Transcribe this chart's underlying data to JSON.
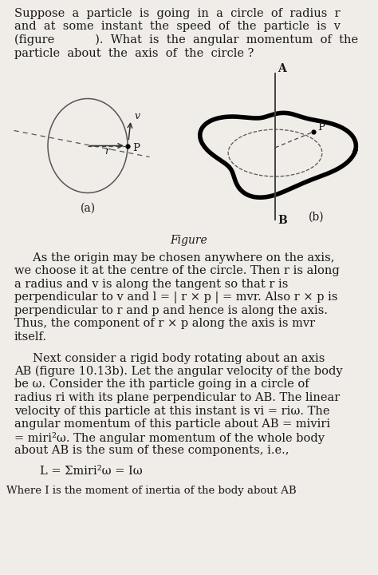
{
  "bg_color": "#f0ede8",
  "text_color": "#1a1a1a",
  "fs": 10.5,
  "lh": 16.5,
  "para1": [
    "Suppose  a  particle  is  going  in  a  circle  of  radius  r",
    "and  at  some  instant  the  speed  of  the  particle  is  v",
    "(figure           ).  What  is  the  angular  momentum  of  the",
    "particle  about  the  axis  of  the  circle ?"
  ],
  "p2": [
    "     As the origin may be chosen anywhere on the axis,",
    "we choose it at the centre of the circle. Then r is along",
    "a radius and v is along the tangent so that r is",
    "perpendicular to v and l = | r × p | = mvr. Also r × p is",
    "perpendicular to r and p and hence is along the axis.",
    "Thus, the component of r × p along the axis is mvr",
    "itself."
  ],
  "p3": [
    "     Next consider a rigid body rotating about an axis",
    "AB (figure 10.13b). Let the angular velocity of the body",
    "be ω. Consider the ith particle going in a circle of",
    "radius ri with its plane perpendicular to AB. The linear",
    "velocity of this particle at this instant is vi = riω. The",
    "angular momentum of this particle about AB = miviri",
    "= miri²ω. The angular momentum of the whole body",
    "about AB is the sum of these components, i.e.,"
  ],
  "formula": "L = Σmiri²ω = Iω",
  "footer": "Where I is the moment of inertia of the body about AB",
  "fig_label": "Figure",
  "fig_a": "(a)",
  "fig_b": "(b)"
}
